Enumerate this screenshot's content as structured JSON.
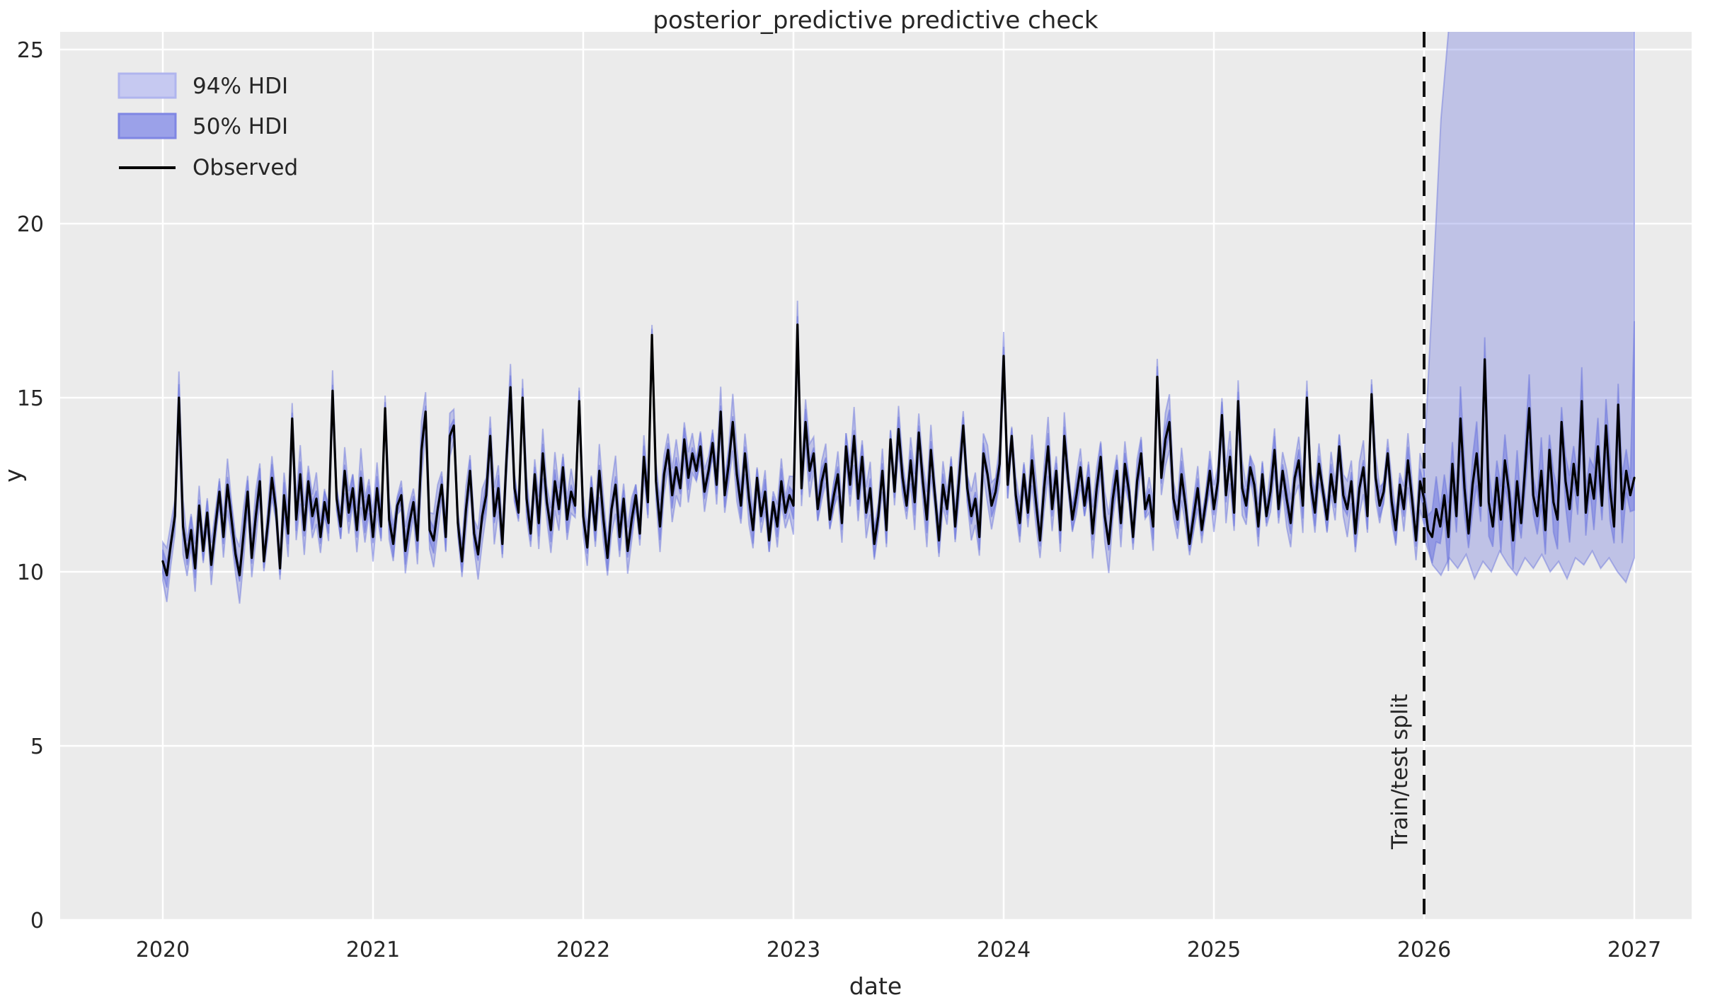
{
  "chart_data": {
    "type": "line",
    "title": "posterior_predictive predictive check",
    "xlabel": "date",
    "ylabel": "y",
    "xticks": [
      2020,
      2021,
      2022,
      2023,
      2024,
      2025,
      2026,
      2027
    ],
    "yticks": [
      0,
      5,
      10,
      15,
      20,
      25
    ],
    "xlim": [
      2019.51,
      2027.27
    ],
    "ylim": [
      0,
      25.5
    ],
    "grid": true,
    "legend_position": "upper-left",
    "legend": [
      {
        "label": "94% HDI",
        "swatch": "band-light"
      },
      {
        "label": "50% HDI",
        "swatch": "band-dark"
      },
      {
        "label": "Observed",
        "swatch": "line"
      }
    ],
    "split": {
      "x": 2026.0,
      "label": "Train/test split",
      "style": "dashed-vertical"
    },
    "colors": {
      "axes_bg": "#ebebeb",
      "grid": "#ffffff",
      "observed": "#000000",
      "hdi94_fill": "#c6c9f1",
      "hdi94_edge": "#b0b5ee",
      "hdi50_fill": "#9ba1e9",
      "hdi50_edge": "#7f86e3",
      "band_fill_94": "rgba(121,129,224,0.38)",
      "band_fill_50": "rgba(121,129,224,0.62)",
      "band_edge": "rgba(103,112,219,0.45)",
      "split_line": "#111111",
      "text": "#262626"
    },
    "series": {
      "x_start": 2020.0,
      "x_step": 0.01923,
      "cadence": "weekly",
      "observed": [
        10.3,
        9.9,
        10.8,
        11.6,
        15.0,
        11.3,
        10.4,
        11.2,
        10.1,
        11.9,
        10.6,
        11.7,
        10.2,
        11.3,
        12.3,
        11.0,
        12.5,
        11.5,
        10.5,
        9.9,
        11.1,
        12.3,
        10.4,
        11.6,
        12.6,
        10.3,
        11.4,
        12.7,
        11.8,
        10.1,
        12.2,
        11.1,
        14.4,
        11.5,
        12.8,
        11.2,
        12.6,
        11.6,
        12.1,
        11.0,
        12.0,
        11.4,
        15.2,
        12.1,
        11.3,
        12.9,
        11.7,
        12.4,
        11.2,
        12.7,
        11.5,
        12.2,
        11.0,
        12.4,
        11.3,
        14.7,
        11.5,
        10.8,
        11.9,
        12.2,
        10.6,
        11.4,
        12.0,
        10.9,
        13.5,
        14.6,
        11.2,
        10.9,
        11.8,
        12.5,
        11.0,
        13.9,
        14.2,
        11.4,
        10.3,
        11.8,
        12.9,
        11.1,
        10.5,
        11.6,
        12.2,
        13.9,
        11.6,
        12.4,
        10.8,
        13.2,
        15.3,
        12.4,
        11.7,
        15.0,
        12.1,
        11.1,
        12.8,
        11.4,
        13.4,
        12.0,
        11.2,
        12.6,
        11.8,
        13.0,
        11.5,
        12.3,
        11.9,
        14.9,
        11.6,
        10.7,
        12.4,
        11.2,
        12.9,
        11.5,
        10.4,
        11.8,
        12.5,
        11.0,
        12.1,
        10.6,
        11.5,
        12.2,
        11.1,
        13.3,
        12.0,
        16.8,
        12.6,
        11.3,
        12.8,
        13.5,
        12.2,
        13.0,
        12.4,
        13.8,
        12.7,
        13.4,
        12.9,
        13.6,
        12.3,
        12.9,
        13.7,
        12.5,
        14.6,
        12.2,
        13.1,
        14.3,
        12.8,
        11.9,
        13.4,
        12.1,
        11.2,
        12.7,
        11.6,
        12.3,
        10.9,
        12.0,
        11.3,
        12.6,
        11.7,
        12.2,
        11.9,
        17.1,
        12.4,
        14.3,
        12.9,
        13.4,
        11.8,
        12.6,
        13.1,
        11.5,
        12.2,
        12.8,
        11.4,
        13.6,
        12.5,
        13.9,
        12.1,
        13.3,
        11.7,
        12.4,
        10.8,
        11.6,
        12.9,
        11.2,
        13.8,
        12.3,
        14.1,
        12.7,
        11.9,
        13.2,
        12.0,
        14.0,
        12.6,
        11.5,
        13.5,
        12.2,
        10.9,
        12.5,
        11.8,
        13.0,
        11.3,
        12.7,
        14.2,
        12.4,
        11.6,
        12.1,
        11.0,
        13.4,
        12.8,
        11.9,
        12.3,
        13.1,
        16.2,
        12.5,
        13.9,
        12.2,
        11.4,
        12.8,
        11.7,
        13.2,
        12.0,
        10.9,
        12.4,
        13.6,
        11.8,
        12.9,
        11.2,
        13.9,
        12.6,
        11.5,
        12.2,
        13.0,
        11.9,
        12.7,
        11.1,
        12.4,
        13.3,
        11.6,
        10.8,
        12.1,
        12.9,
        11.4,
        13.1,
        12.3,
        11.0,
        12.6,
        13.4,
        11.8,
        12.2,
        11.3,
        15.6,
        12.7,
        13.8,
        14.3,
        12.1,
        11.5,
        12.8,
        11.9,
        10.8,
        11.6,
        12.4,
        11.2,
        12.0,
        12.9,
        11.8,
        12.6,
        14.5,
        12.2,
        13.3,
        11.7,
        14.9,
        12.4,
        11.9,
        13.0,
        12.5,
        11.3,
        12.8,
        11.6,
        12.3,
        13.5,
        11.8,
        12.9,
        12.1,
        11.4,
        12.7,
        13.2,
        11.9,
        15.0,
        12.5,
        11.7,
        13.1,
        12.3,
        11.5,
        12.8,
        12.0,
        13.6,
        12.2,
        11.8,
        12.6,
        11.1,
        12.4,
        13.0,
        11.6,
        15.1,
        12.7,
        11.9,
        12.3,
        13.4,
        12.0,
        11.2,
        12.5,
        11.8,
        13.2,
        12.1,
        10.9,
        12.6,
        12.1,
        11.2,
        11.0,
        11.8,
        11.3,
        12.2,
        11.0,
        13.1,
        11.6,
        14.4,
        12.4,
        11.1,
        12.5,
        13.4,
        11.9,
        16.1,
        12.0,
        11.3,
        12.7,
        11.5,
        13.2,
        12.3,
        10.9,
        12.6,
        11.4,
        13.0,
        14.7,
        12.2,
        11.6,
        12.9,
        11.2,
        13.5,
        12.0,
        11.5,
        14.3,
        12.6,
        11.8,
        13.1,
        12.2,
        14.9,
        11.7,
        12.8,
        12.1,
        13.6,
        11.9,
        14.2,
        12.4,
        11.3,
        14.8,
        11.8,
        12.9,
        12.2,
        12.7
      ]
    },
    "hdi94": {
      "train_halfwidth": 0.55,
      "test": {
        "x": [
          2026.0,
          2026.04,
          2026.08,
          2026.12,
          2026.16,
          2026.2,
          2026.24,
          2026.28,
          2026.32,
          2026.36,
          2026.4,
          2026.44,
          2026.48,
          2026.52,
          2026.56,
          2026.6,
          2026.64,
          2026.68,
          2026.72,
          2026.76,
          2026.8,
          2026.84,
          2026.88,
          2026.92,
          2026.96,
          2027.0
        ],
        "upper": [
          13.2,
          18.0,
          23.0,
          25.8,
          25.8,
          25.8,
          25.8,
          25.8,
          25.8,
          25.8,
          25.8,
          25.8,
          25.8,
          25.8,
          25.8,
          25.8,
          25.8,
          25.8,
          25.8,
          25.8,
          25.8,
          25.8,
          25.8,
          25.8,
          25.8,
          25.8
        ],
        "lower": [
          11.0,
          10.2,
          9.9,
          10.4,
          10.1,
          10.5,
          9.8,
          10.3,
          10.0,
          10.6,
          10.2,
          9.9,
          10.4,
          10.1,
          10.5,
          10.0,
          10.3,
          9.8,
          10.4,
          10.2,
          10.6,
          10.1,
          10.4,
          10.0,
          9.7,
          10.4
        ]
      }
    },
    "hdi50": {
      "train_halfwidth": 0.28,
      "test_halfwidth": 0.7,
      "test_end_upper": 17.2
    }
  }
}
